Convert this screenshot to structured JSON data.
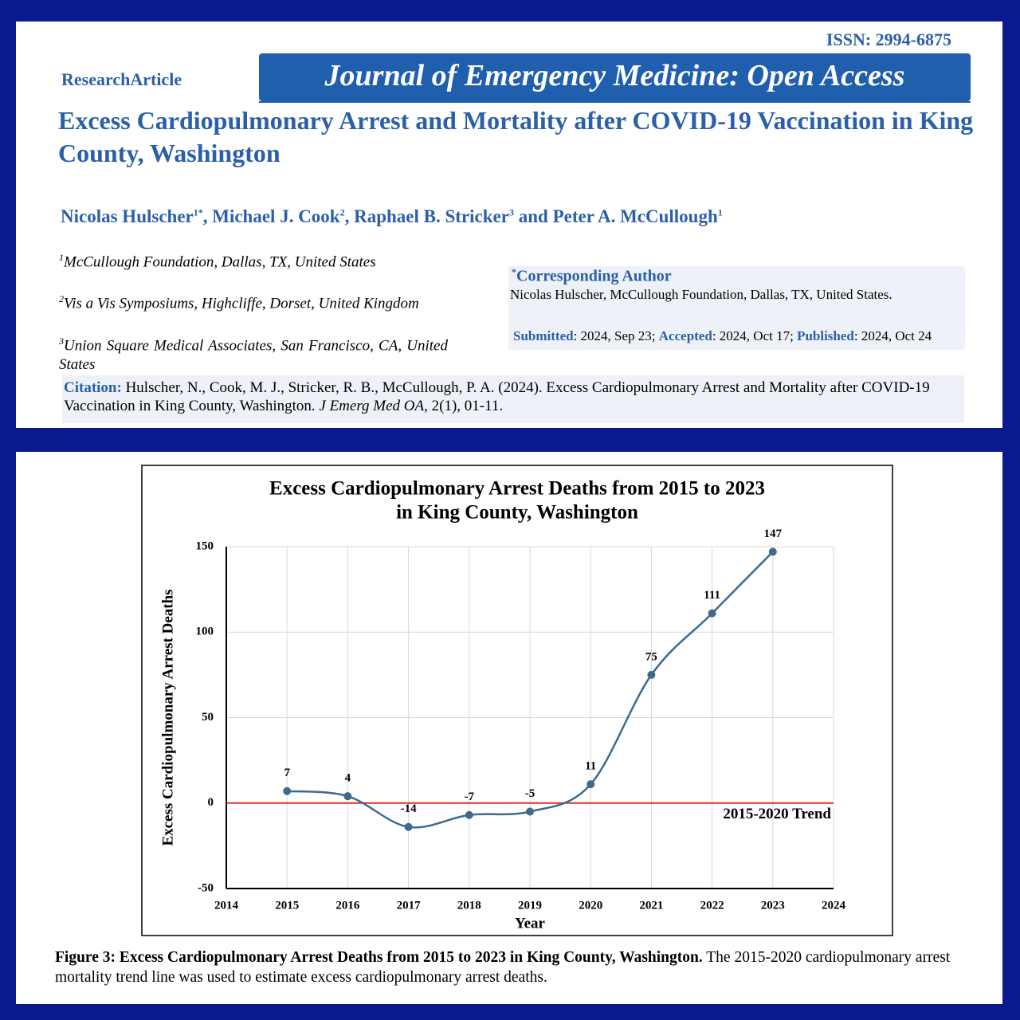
{
  "header": {
    "issn": "ISSN: 2994-6875",
    "article_type": "ResearchArticle",
    "journal": "Journal of Emergency Medicine: Open Access",
    "title": "Excess Cardiopulmonary Arrest and Mortality after COVID-19 Vaccination in King County, Washington"
  },
  "authors": {
    "names": [
      "Nicolas Hulscher",
      "Michael J. Cook",
      "Raphael B. Stricker",
      "Peter A. McCullough"
    ],
    "sups": [
      "1*",
      "2",
      "3",
      "1"
    ],
    "connectors": [
      ", ",
      ", ",
      " and "
    ]
  },
  "affiliations": [
    {
      "sup": "1",
      "text": "McCullough Foundation, Dallas, TX, United States"
    },
    {
      "sup": "2",
      "text": "Vis a Vis Symposiums, Highcliffe, Dorset, United Kingdom"
    },
    {
      "sup": "3",
      "text": "Union Square Medical Associates, San Francisco, CA, United States"
    }
  ],
  "corresponding": {
    "sup": "*",
    "label": "Corresponding Author",
    "text": "Nicolas Hulscher, McCullough Foundation, Dallas, TX, United States."
  },
  "dates": [
    {
      "label": "Submitted",
      "text": ": 2024, Sep 23; "
    },
    {
      "label": "Accepted",
      "text": ": 2024, Oct 17; "
    },
    {
      "label": "Published",
      "text": ": 2024, Oct 24"
    }
  ],
  "citation": {
    "label": "Citation:",
    "text": "Hulscher, N., Cook, M. J., Stricker, R. B., McCullough, P. A. (2024). Excess Cardiopulmonary Arrest and Mortality after COVID-19 Vaccination in King County, Washington. ",
    "journal": "J Emerg Med OA,",
    "tail": " 2(1), 01-11."
  },
  "chart_data": {
    "type": "line",
    "title": [
      "Excess Cardiopulmonary Arrest Deaths from 2015 to 2023",
      "in King County, Washington"
    ],
    "xlabel": "Year",
    "ylabel": "Excess Cardiopulmonary Arrest Deaths",
    "x": [
      2015,
      2016,
      2017,
      2018,
      2019,
      2020,
      2021,
      2022,
      2023
    ],
    "series": [
      {
        "name": "Excess Cardiopulmonary Arrest Deaths",
        "color": "#3d6a8e",
        "values": [
          7,
          4,
          -14,
          -7,
          -5,
          11,
          75,
          111,
          147
        ]
      }
    ],
    "xlim": [
      2014,
      2024
    ],
    "xticks": [
      2014,
      2015,
      2016,
      2017,
      2018,
      2019,
      2020,
      2021,
      2022,
      2023,
      2024
    ],
    "ylim": [
      -50,
      150
    ],
    "yticks": [
      -50,
      0,
      50,
      100,
      150
    ],
    "grid": true,
    "smooth": true,
    "trend": {
      "name": "2015-2020 Trend",
      "value": 0,
      "color": "#d8342a"
    }
  },
  "figure_caption": {
    "label": "Figure 3: Excess Cardiopulmonary Arrest Deaths from 2015 to 2023 in King County, Washington.",
    "text": " The 2015-2020 cardiopulmonary arrest mortality trend line was used to estimate excess cardiopulmonary arrest deaths."
  }
}
